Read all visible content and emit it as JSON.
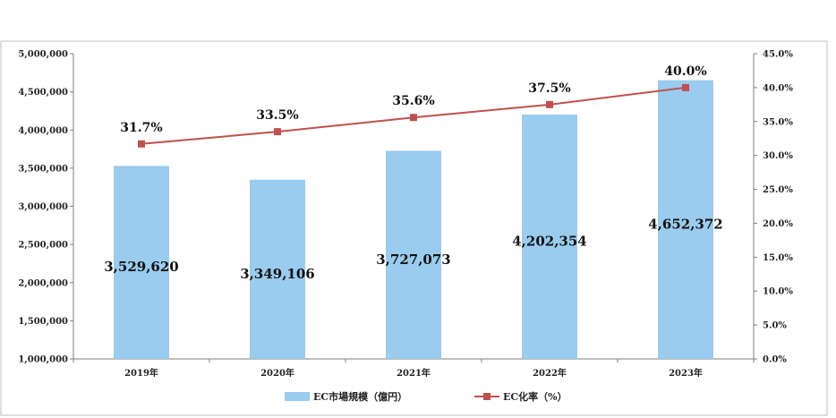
{
  "chart_data": {
    "type": "bar+line",
    "categories": [
      "2019年",
      "2020年",
      "2021年",
      "2022年",
      "2023年"
    ],
    "series": [
      {
        "name": "EC市場規模（億円）",
        "type": "bar",
        "axis": "left",
        "values": [
          3529620,
          3349106,
          3727073,
          4202354,
          4652372
        ],
        "labels": [
          "3,529,620",
          "3,349,106",
          "3,727,073",
          "4,202,354",
          "4,652,372"
        ],
        "color": "#99ccee"
      },
      {
        "name": "EC化率（%）",
        "type": "line",
        "axis": "right",
        "values": [
          31.7,
          33.5,
          35.6,
          37.5,
          40.0
        ],
        "labels": [
          "31.7%",
          "33.5%",
          "35.6%",
          "37.5%",
          "40.0%"
        ],
        "color": "#c0504d"
      }
    ],
    "y_left": {
      "min": 1000000,
      "max": 5000000,
      "ticks": [
        1000000,
        1500000,
        2000000,
        2500000,
        3000000,
        3500000,
        4000000,
        4500000,
        5000000
      ],
      "tick_labels": [
        "1,000,000",
        "1,500,000",
        "2,000,000",
        "2,500,000",
        "3,000,000",
        "3,500,000",
        "4,000,000",
        "4,500,000",
        "5,000,000"
      ]
    },
    "y_right": {
      "min": 0,
      "max": 45,
      "ticks": [
        0,
        5,
        10,
        15,
        20,
        25,
        30,
        35,
        40,
        45
      ],
      "tick_labels": [
        "0.0%",
        "5.0%",
        "10.0%",
        "15.0%",
        "20.0%",
        "25.0%",
        "30.0%",
        "35.0%",
        "40.0%",
        "45.0%"
      ]
    },
    "grid": false,
    "legend_position": "bottom"
  }
}
